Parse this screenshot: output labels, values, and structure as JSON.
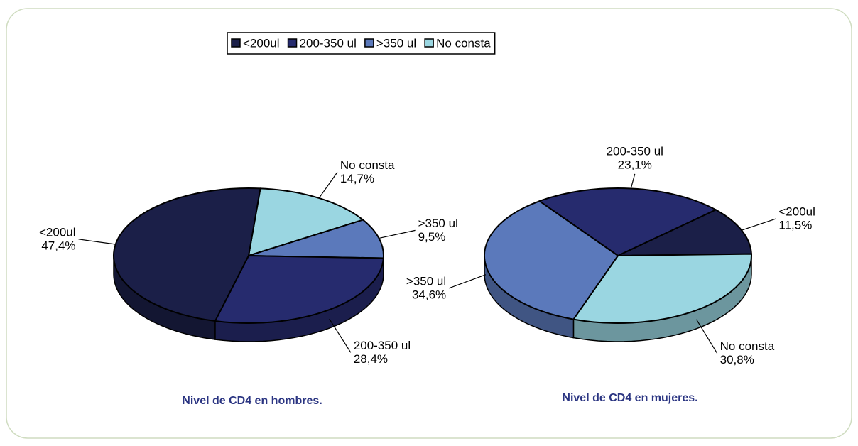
{
  "legend": {
    "items": [
      {
        "name": "<200ul",
        "color": "#1b1f48"
      },
      {
        "name": "200-350 ul",
        "color": "#262b6e"
      },
      {
        "name": ">350 ul",
        "color": "#5b79bb"
      },
      {
        "name": "No consta",
        "color": "#9ad6e1"
      }
    ]
  },
  "chart_data": [
    {
      "type": "pie",
      "title": "Nivel de CD4 en hombres.",
      "categories": [
        "No consta",
        ">350 ul",
        "200-350 ul",
        "<200ul"
      ],
      "values": [
        14.7,
        9.5,
        28.4,
        47.4
      ],
      "value_labels": [
        "14,7%",
        "9,5%",
        "28,4%",
        "47,4%"
      ],
      "colors": [
        "#9ad6e1",
        "#5b79bb",
        "#262b6e",
        "#1b1f48"
      ]
    },
    {
      "type": "pie",
      "title": "Nivel de CD4 en mujeres.",
      "categories": [
        "200-350 ul",
        "<200ul",
        "No consta",
        ">350 ul"
      ],
      "values": [
        23.1,
        11.5,
        30.8,
        34.6
      ],
      "value_labels": [
        "23,1%",
        "11,5%",
        "30,8%",
        "34,6%"
      ],
      "colors": [
        "#262b6e",
        "#1b1f48",
        "#9ad6e1",
        "#5b79bb"
      ]
    }
  ]
}
